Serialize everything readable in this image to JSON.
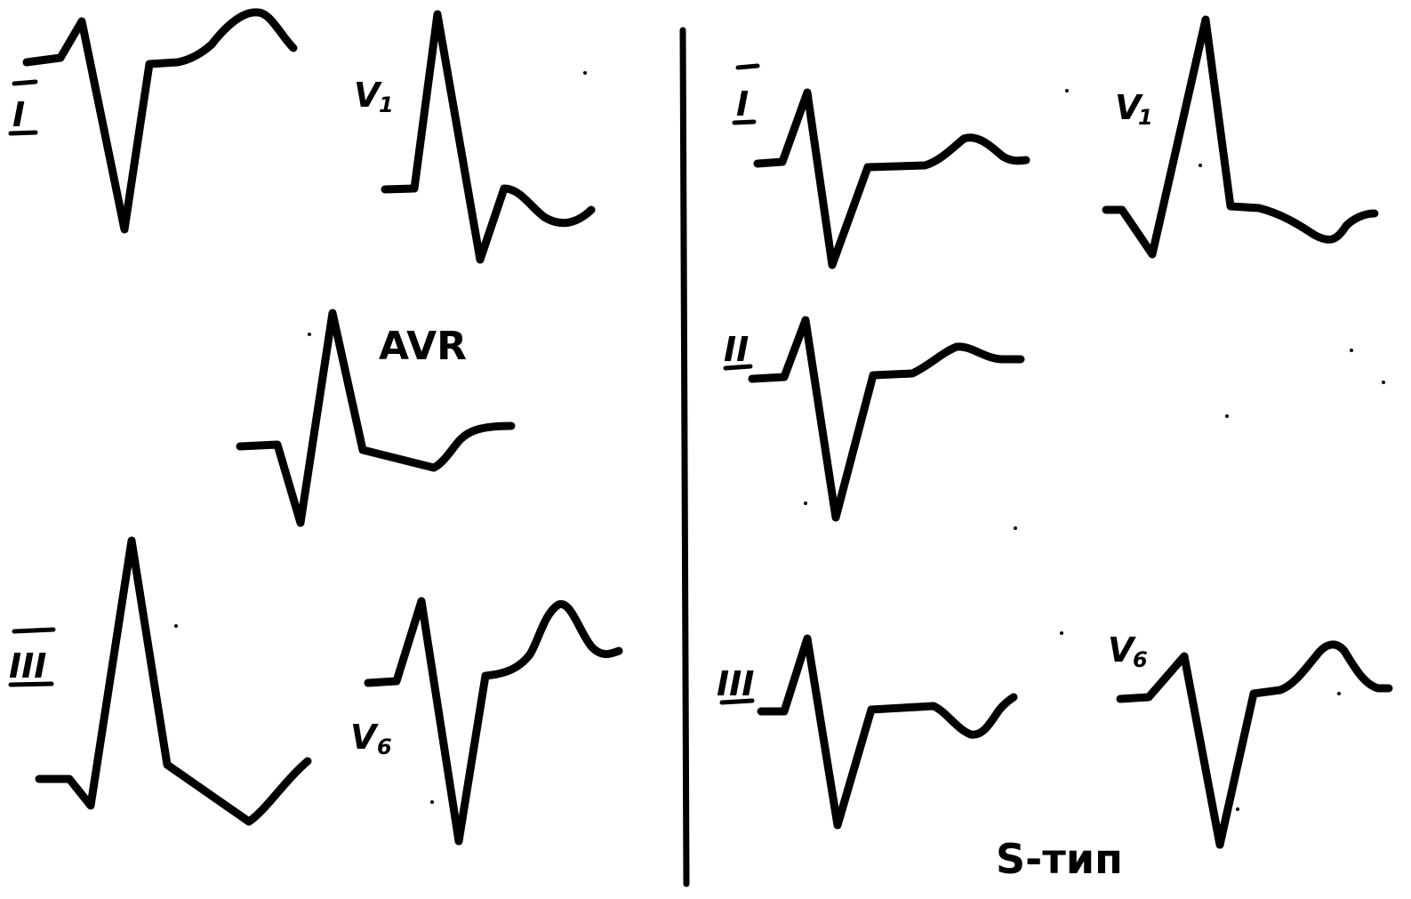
{
  "left_panel": {
    "leads": {
      "I": {
        "numeral": "I"
      },
      "V1": {
        "letter": "V",
        "sub": "1"
      },
      "AVR": {
        "text": "AVR"
      },
      "III": {
        "numeral": "III"
      },
      "V6": {
        "letter": "V",
        "sub": "6"
      }
    }
  },
  "right_panel": {
    "leads": {
      "I": {
        "numeral": "I"
      },
      "V1": {
        "letter": "V",
        "sub": "1"
      },
      "II": {
        "numeral": "II"
      },
      "III": {
        "numeral": "III"
      },
      "V6": {
        "letter": "V",
        "sub": "6"
      }
    },
    "type_label": "S-тип"
  },
  "colors": {
    "ink": "#000000",
    "paper": "#ffffff"
  }
}
